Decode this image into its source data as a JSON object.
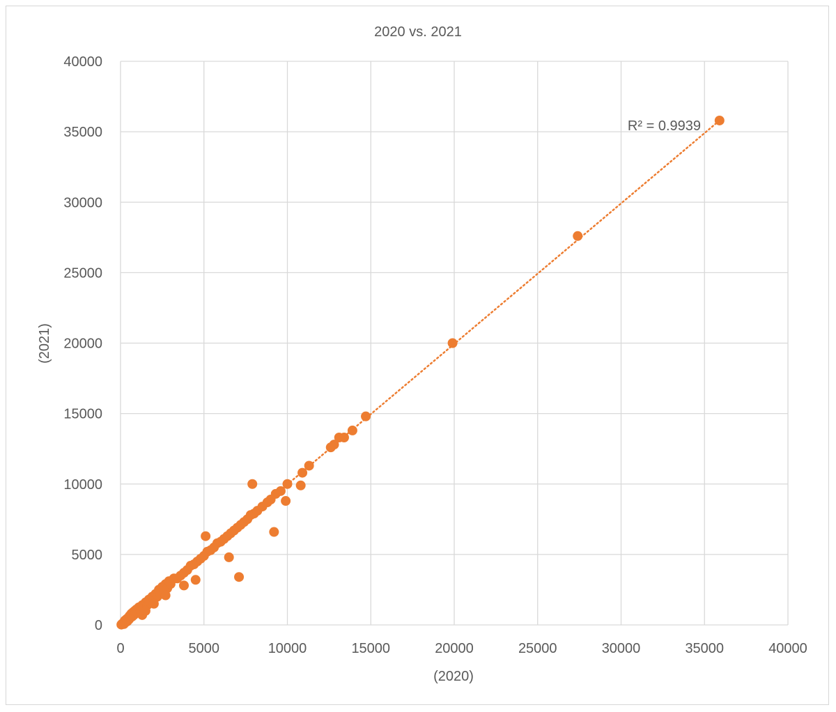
{
  "chart_data": {
    "type": "scatter",
    "title": "2020 vs. 2021",
    "xlabel": "(2020)",
    "ylabel": "(2021)",
    "xlim": [
      0,
      40000
    ],
    "ylim": [
      0,
      40000
    ],
    "xticks": [
      "0",
      "5000",
      "10000",
      "15000",
      "20000",
      "25000",
      "30000",
      "35000",
      "40000"
    ],
    "yticks": [
      "0",
      "5000",
      "10000",
      "15000",
      "20000",
      "25000",
      "30000",
      "35000",
      "40000"
    ],
    "grid": true,
    "legend": "none",
    "color": "#ED7D31",
    "trendline": {
      "type": "linear",
      "style": "dotted",
      "from": [
        0,
        0
      ],
      "to": [
        35900,
        35800
      ]
    },
    "r_squared_label": "R² = 0.9939",
    "series": [
      {
        "points": [
          [
            50,
            20
          ],
          [
            100,
            80
          ],
          [
            150,
            120
          ],
          [
            200,
            60
          ],
          [
            250,
            300
          ],
          [
            300,
            180
          ],
          [
            350,
            400
          ],
          [
            400,
            250
          ],
          [
            450,
            500
          ],
          [
            500,
            380
          ],
          [
            550,
            650
          ],
          [
            600,
            520
          ],
          [
            650,
            800
          ],
          [
            700,
            600
          ],
          [
            750,
            900
          ],
          [
            800,
            700
          ],
          [
            850,
            1000
          ],
          [
            900,
            850
          ],
          [
            950,
            1100
          ],
          [
            1000,
            900
          ],
          [
            1100,
            1250
          ],
          [
            1200,
            1000
          ],
          [
            1300,
            1400
          ],
          [
            1400,
            1150
          ],
          [
            1500,
            1600
          ],
          [
            1600,
            1400
          ],
          [
            1700,
            1800
          ],
          [
            1800,
            1600
          ],
          [
            1900,
            2000
          ],
          [
            2000,
            1800
          ],
          [
            2100,
            2200
          ],
          [
            2200,
            2000
          ],
          [
            2300,
            2500
          ],
          [
            2400,
            2200
          ],
          [
            2500,
            2700
          ],
          [
            2600,
            2500
          ],
          [
            2700,
            2900
          ],
          [
            2800,
            2600
          ],
          [
            2900,
            3100
          ],
          [
            3000,
            2900
          ],
          [
            3200,
            3300
          ],
          [
            3400,
            3300
          ],
          [
            3600,
            3500
          ],
          [
            3800,
            3700
          ],
          [
            4000,
            3900
          ],
          [
            4200,
            4200
          ],
          [
            4400,
            4300
          ],
          [
            4600,
            4500
          ],
          [
            4800,
            4700
          ],
          [
            5000,
            4900
          ],
          [
            5200,
            5200
          ],
          [
            5400,
            5300
          ],
          [
            5600,
            5500
          ],
          [
            5800,
            5800
          ],
          [
            6000,
            5900
          ],
          [
            6200,
            6100
          ],
          [
            6400,
            6300
          ],
          [
            6600,
            6500
          ],
          [
            6800,
            6700
          ],
          [
            7000,
            6900
          ],
          [
            7200,
            7100
          ],
          [
            7400,
            7300
          ],
          [
            7600,
            7500
          ],
          [
            7800,
            7800
          ],
          [
            8000,
            7900
          ],
          [
            8200,
            8100
          ],
          [
            8500,
            8400
          ],
          [
            8800,
            8700
          ],
          [
            9000,
            8900
          ],
          [
            9300,
            9300
          ],
          [
            9600,
            9500
          ],
          [
            10000,
            10000
          ],
          [
            1300,
            700
          ],
          [
            1500,
            1000
          ],
          [
            2000,
            1500
          ],
          [
            2700,
            2100
          ],
          [
            3800,
            2800
          ],
          [
            4500,
            3200
          ],
          [
            5100,
            6300
          ],
          [
            6500,
            4800
          ],
          [
            7100,
            3400
          ],
          [
            7900,
            10000
          ],
          [
            9200,
            6600
          ],
          [
            9900,
            8800
          ],
          [
            10800,
            9900
          ],
          [
            10900,
            10800
          ],
          [
            11300,
            11300
          ],
          [
            12600,
            12600
          ],
          [
            12800,
            12800
          ],
          [
            13100,
            13300
          ],
          [
            13400,
            13300
          ],
          [
            13900,
            13800
          ],
          [
            14700,
            14800
          ],
          [
            19900,
            20000
          ],
          [
            27400,
            27600
          ],
          [
            35900,
            35800
          ]
        ]
      }
    ]
  }
}
